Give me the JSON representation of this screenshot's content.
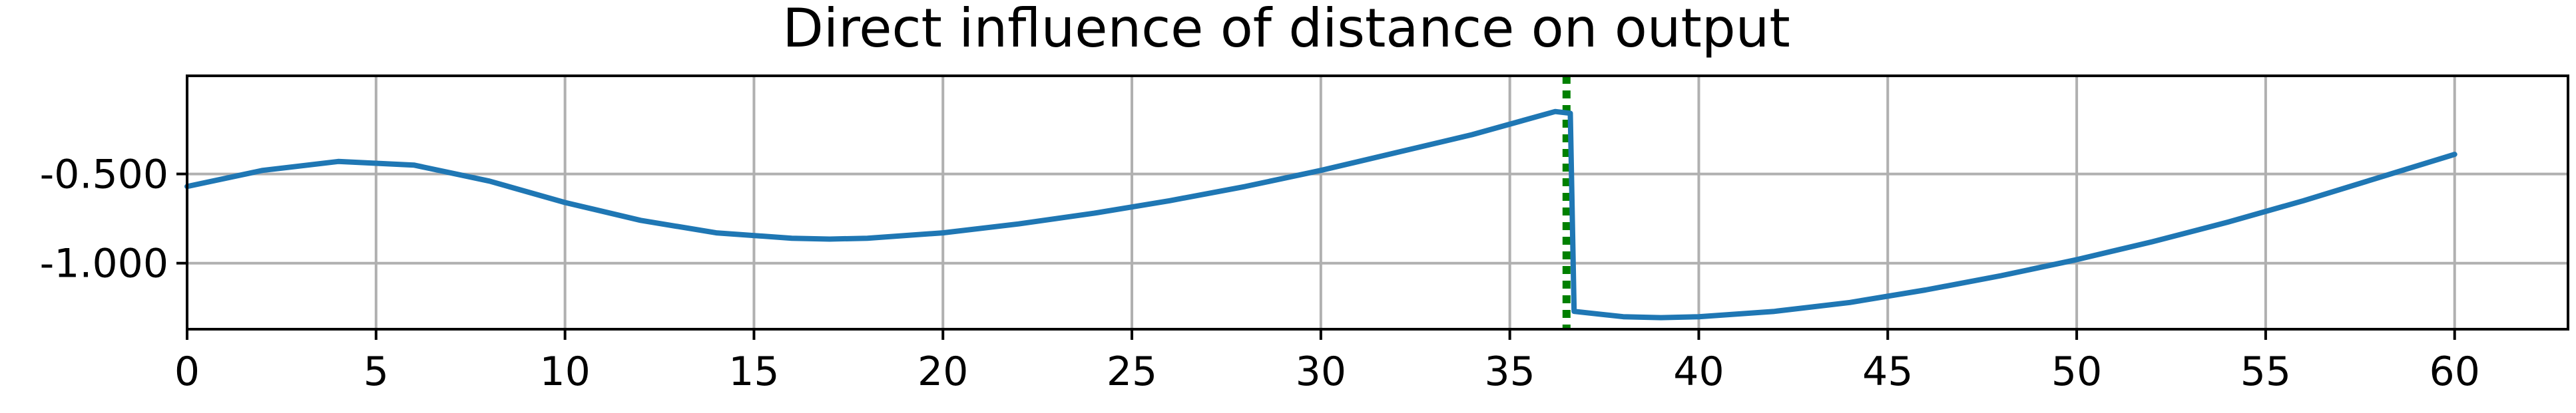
{
  "chart_data": {
    "type": "line",
    "title": "Direct influence of distance on output",
    "xlabel": "",
    "ylabel": "",
    "xlim": [
      0,
      63
    ],
    "ylim": [
      -1.37,
      0.05
    ],
    "grid": true,
    "x_ticks": [
      0,
      5,
      10,
      15,
      20,
      25,
      30,
      35,
      40,
      45,
      50,
      55,
      60
    ],
    "x_tick_labels": [
      "0",
      "5",
      "10",
      "15",
      "20",
      "25",
      "30",
      "35",
      "40",
      "45",
      "50",
      "55",
      "60"
    ],
    "y_ticks": [
      -0.5,
      -1.0
    ],
    "y_tick_labels": [
      "-0.500",
      "-1.000"
    ],
    "vline": {
      "x": 36.5,
      "color": "#008000",
      "style": "dotted"
    },
    "series": [
      {
        "color": "#1f77b4",
        "x": [
          0,
          2,
          4,
          6,
          8,
          10,
          12,
          14,
          16,
          17,
          18,
          20,
          22,
          24,
          26,
          28,
          30,
          32,
          34,
          36.2,
          36.6,
          36.7,
          38,
          39,
          40,
          42,
          44,
          46,
          48,
          50,
          52,
          54,
          56,
          58,
          60
        ],
        "y": [
          -0.57,
          -0.48,
          -0.43,
          -0.45,
          -0.54,
          -0.66,
          -0.76,
          -0.83,
          -0.86,
          -0.865,
          -0.86,
          -0.83,
          -0.78,
          -0.72,
          -0.65,
          -0.57,
          -0.48,
          -0.38,
          -0.28,
          -0.15,
          -0.16,
          -1.27,
          -1.3,
          -1.305,
          -1.3,
          -1.27,
          -1.22,
          -1.15,
          -1.07,
          -0.98,
          -0.88,
          -0.77,
          -0.65,
          -0.52,
          -0.39
        ]
      }
    ]
  }
}
